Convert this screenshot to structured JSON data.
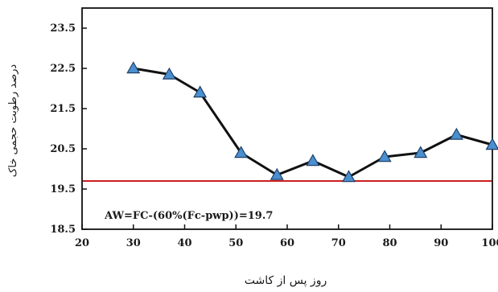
{
  "chart_data": {
    "type": "line",
    "title": "",
    "xlabel": "روز پس از کاشت",
    "ylabel": "درصد رطوبت حجمی خاک",
    "xlim": [
      20,
      100
    ],
    "ylim": [
      18.5,
      24.0
    ],
    "x_ticks": [
      20,
      30,
      40,
      50,
      60,
      70,
      80,
      90,
      100
    ],
    "y_ticks": [
      "23.5",
      "22.5",
      "21.5",
      "20.5",
      "19.5",
      "18.5"
    ],
    "grid": false,
    "legend": "none",
    "series": [
      {
        "x": [
          30,
          37,
          43,
          51,
          58,
          65,
          72,
          79,
          86,
          93,
          100
        ],
        "y": [
          22.5,
          22.35,
          21.9,
          20.4,
          19.85,
          20.2,
          19.8,
          20.3,
          20.4,
          20.85,
          20.6
        ]
      }
    ],
    "reference_line": {
      "y": 19.7,
      "color": "#cc1f1f"
    },
    "annotation": "AW=FC-(60%(Fc-pwp))=19.7",
    "colors": {
      "line": "#111111",
      "marker_fill": "#4a8fcf",
      "marker_stroke": "#1f3f66",
      "reference": "#cc1f1f",
      "axis": "#111111"
    }
  }
}
